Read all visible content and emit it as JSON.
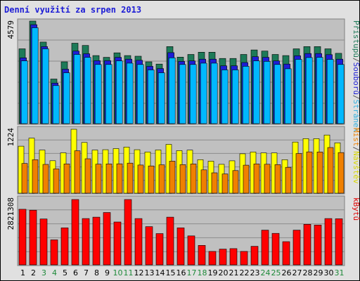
{
  "chart_data": {
    "type": "bar",
    "title": "Denní využití za srpen 2013",
    "categories": [
      "1",
      "2",
      "3",
      "4",
      "5",
      "6",
      "7",
      "8",
      "9",
      "10",
      "11",
      "12",
      "13",
      "14",
      "15",
      "16",
      "17",
      "18",
      "19",
      "20",
      "21",
      "22",
      "23",
      "24",
      "25",
      "26",
      "27",
      "28",
      "29",
      "30",
      "31"
    ],
    "weekend_categories": [
      "3",
      "4",
      "10",
      "11",
      "17",
      "18",
      "24",
      "25",
      "31"
    ],
    "panels": [
      {
        "ymax_label": "4579",
        "ymax": 4579,
        "legend": [
          {
            "text": "Přístupů",
            "color": "#1d7a58"
          },
          {
            "text": "/",
            "color": "#555555"
          },
          {
            "text": "Souborů",
            "color": "#1d1dd6"
          },
          {
            "text": "/",
            "color": "#555555"
          },
          {
            "text": "Stránek",
            "color": "#30b0e0"
          }
        ],
        "series": [
          {
            "name": "Přístupů",
            "color": "#1d7a58",
            "values": [
              3340,
              4579,
              3640,
              1990,
              2760,
              3590,
              3490,
              3040,
              2960,
              3160,
              3040,
              3010,
              2760,
              2660,
              3440,
              2970,
              3090,
              3190,
              3190,
              2910,
              2910,
              3090,
              3290,
              3240,
              3090,
              3040,
              3340,
              3440,
              3440,
              3340,
              3140
            ]
          },
          {
            "name": "Souborů",
            "color": "#1d1dd6",
            "values": [
              2940,
              4420,
              3440,
              1810,
              2430,
              3240,
              3120,
              2810,
              2810,
              2960,
              2880,
              2830,
              2560,
              2460,
              3170,
              2780,
              2800,
              2880,
              2880,
              2580,
              2580,
              2730,
              2990,
              2960,
              2800,
              2660,
              3030,
              3130,
              3130,
              3080,
              2880
            ]
          },
          {
            "name": "Stránek",
            "color": "#00b8ff",
            "values": [
              2800,
              4280,
              3340,
              1700,
              2270,
              3090,
              2960,
              2640,
              2640,
              2800,
              2700,
              2640,
              2400,
              2270,
              2940,
              2640,
              2640,
              2700,
              2700,
              2400,
              2400,
              2560,
              2800,
              2780,
              2640,
              2450,
              2870,
              2950,
              2960,
              2870,
              2640
            ]
          }
        ]
      },
      {
        "ymax_label": "1224",
        "ymax": 1224,
        "legend": [
          {
            "text": "Míst",
            "color": "#f08000"
          },
          {
            "text": "/",
            "color": "#555555"
          },
          {
            "text": "Návštěv",
            "color": "#d8d800"
          }
        ],
        "series": [
          {
            "name": "Návštěv",
            "color": "#ffff00",
            "values": [
              900,
              1055,
              826,
              621,
              773,
              1224,
              971,
              826,
              832,
              854,
              884,
              833,
              790,
              827,
              935,
              815,
              825,
              642,
              613,
              553,
              620,
              755,
              790,
              772,
              771,
              641,
              979,
              1045,
              1044,
              1114,
              965
            ]
          },
          {
            "name": "Míst",
            "color": "#f08000",
            "values": [
              569,
              642,
              552,
              465,
              561,
              812,
              659,
              555,
              561,
              562,
              576,
              539,
              522,
              544,
              614,
              547,
              559,
              446,
              390,
              369,
              433,
              537,
              561,
              554,
              548,
              495,
              760,
              791,
              790,
              874,
              778
            ]
          }
        ]
      },
      {
        "ymax_label": "2821308",
        "ymax": 2821308,
        "legend": [
          {
            "text": "kBytů",
            "color": "#e00000"
          }
        ],
        "series": [
          {
            "name": "kBytů",
            "color": "#ff0000",
            "values": [
              2400000,
              2360000,
              1980000,
              1080000,
              1600000,
              2821308,
              2000000,
              2060000,
              2260000,
              1850000,
              2821308,
              2000000,
              1650000,
              1350000,
              2060000,
              1600000,
              1250000,
              840000,
              580000,
              680000,
              700000,
              580000,
              800000,
              1500000,
              1360000,
              1000000,
              1500000,
              1750000,
              1720000,
              2000000,
              1990000
            ]
          }
        ]
      }
    ]
  }
}
